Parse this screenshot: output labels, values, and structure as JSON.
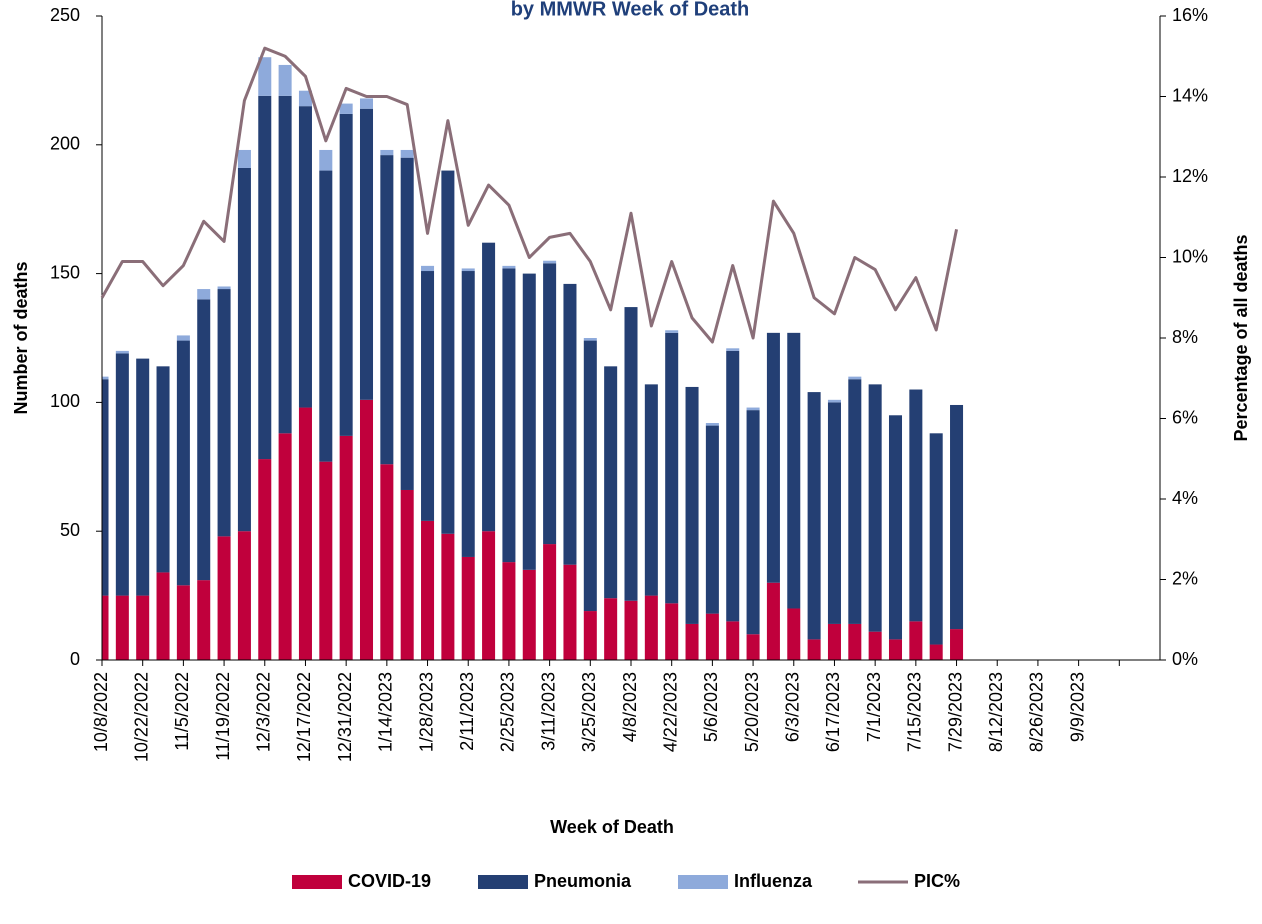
{
  "chart_data": {
    "type": "bar",
    "stacked": true,
    "title": "by MMWR Week of Death",
    "x_label": "Week of Death",
    "y_label": "Number of deaths",
    "y2_label": "Percentage of all deaths",
    "categories": [
      "10/8/2022",
      null,
      "10/22/2022",
      null,
      "11/5/2022",
      null,
      "11/19/2022",
      null,
      "12/3/2022",
      null,
      "12/17/2022",
      null,
      "12/31/2022",
      null,
      "1/14/2023",
      null,
      "1/28/2023",
      null,
      "2/11/2023",
      null,
      "2/25/2023",
      null,
      "3/11/2023",
      null,
      "3/25/2023",
      null,
      "4/8/2023",
      null,
      "4/22/2023",
      null,
      "5/6/2023",
      null,
      "5/20/2023",
      null,
      "6/3/2023",
      null,
      "6/17/2023",
      null,
      "7/1/2023",
      null,
      "7/15/2023",
      null,
      "7/29/2023",
      null,
      "8/12/2023",
      null,
      "8/26/2023",
      null,
      "9/9/2023",
      null,
      null,
      null
    ],
    "series": [
      {
        "name": "COVID-19",
        "type": "bar",
        "color": "#c0003c",
        "values": [
          25,
          25,
          25,
          34,
          29,
          31,
          48,
          50,
          78,
          88,
          98,
          77,
          87,
          101,
          76,
          66,
          54,
          49,
          40,
          50,
          38,
          35,
          45,
          37,
          19,
          24,
          23,
          25,
          22,
          14,
          18,
          15,
          10,
          30,
          20,
          8,
          14,
          14,
          11,
          8,
          15,
          6,
          12,
          null,
          null,
          null,
          null,
          null,
          null,
          null,
          null,
          null
        ]
      },
      {
        "name": "Pneumonia",
        "type": "bar",
        "color": "#243f73",
        "values": [
          84,
          94,
          92,
          80,
          95,
          109,
          96,
          141,
          141,
          131,
          117,
          113,
          125,
          113,
          120,
          129,
          97,
          141,
          111,
          112,
          114,
          115,
          109,
          109,
          105,
          90,
          114,
          82,
          105,
          92,
          73,
          105,
          87,
          97,
          107,
          96,
          86,
          95,
          96,
          87,
          90,
          82,
          87,
          null,
          null,
          null,
          null,
          null,
          null,
          null,
          null,
          null
        ]
      },
      {
        "name": "Influenza",
        "type": "bar",
        "color": "#8eaadb",
        "values": [
          1,
          1,
          0,
          0,
          2,
          4,
          1,
          7,
          15,
          12,
          6,
          8,
          4,
          4,
          2,
          3,
          2,
          0,
          1,
          0,
          1,
          0,
          1,
          0,
          1,
          0,
          0,
          0,
          1,
          0,
          1,
          1,
          1,
          0,
          0,
          0,
          1,
          1,
          0,
          0,
          0,
          0,
          0,
          null,
          null,
          null,
          null,
          null,
          null,
          null,
          null,
          null
        ]
      },
      {
        "name": "PIC%",
        "type": "line",
        "axis": "y2",
        "color": "#8a6e78",
        "values": [
          9.0,
          9.9,
          9.9,
          9.3,
          9.8,
          10.9,
          10.4,
          13.9,
          15.2,
          15.0,
          14.5,
          12.9,
          14.2,
          14.0,
          14.0,
          13.8,
          10.6,
          13.4,
          10.8,
          11.8,
          11.3,
          10.0,
          10.5,
          10.6,
          9.9,
          8.7,
          11.1,
          8.3,
          9.9,
          8.5,
          7.9,
          9.8,
          8.0,
          11.4,
          10.6,
          9.0,
          8.6,
          10.0,
          9.7,
          8.7,
          9.5,
          8.2,
          10.7,
          null,
          null,
          null,
          null,
          null,
          null,
          null,
          null,
          null
        ]
      }
    ],
    "ylim": [
      0,
      250
    ],
    "yticks": [
      0,
      50,
      100,
      150,
      200,
      250
    ],
    "y2lim": [
      0,
      16
    ],
    "y2ticks": [
      {
        "value": 0,
        "label": "0%"
      },
      {
        "value": 2,
        "label": "2%"
      },
      {
        "value": 4,
        "label": "4%"
      },
      {
        "value": 6,
        "label": "6%"
      },
      {
        "value": 8,
        "label": "8%"
      },
      {
        "value": 10,
        "label": "10%"
      },
      {
        "value": 12,
        "label": "12%"
      },
      {
        "value": 14,
        "label": "14%"
      },
      {
        "value": 16,
        "label": "16%"
      }
    ],
    "legend": "bottom"
  }
}
